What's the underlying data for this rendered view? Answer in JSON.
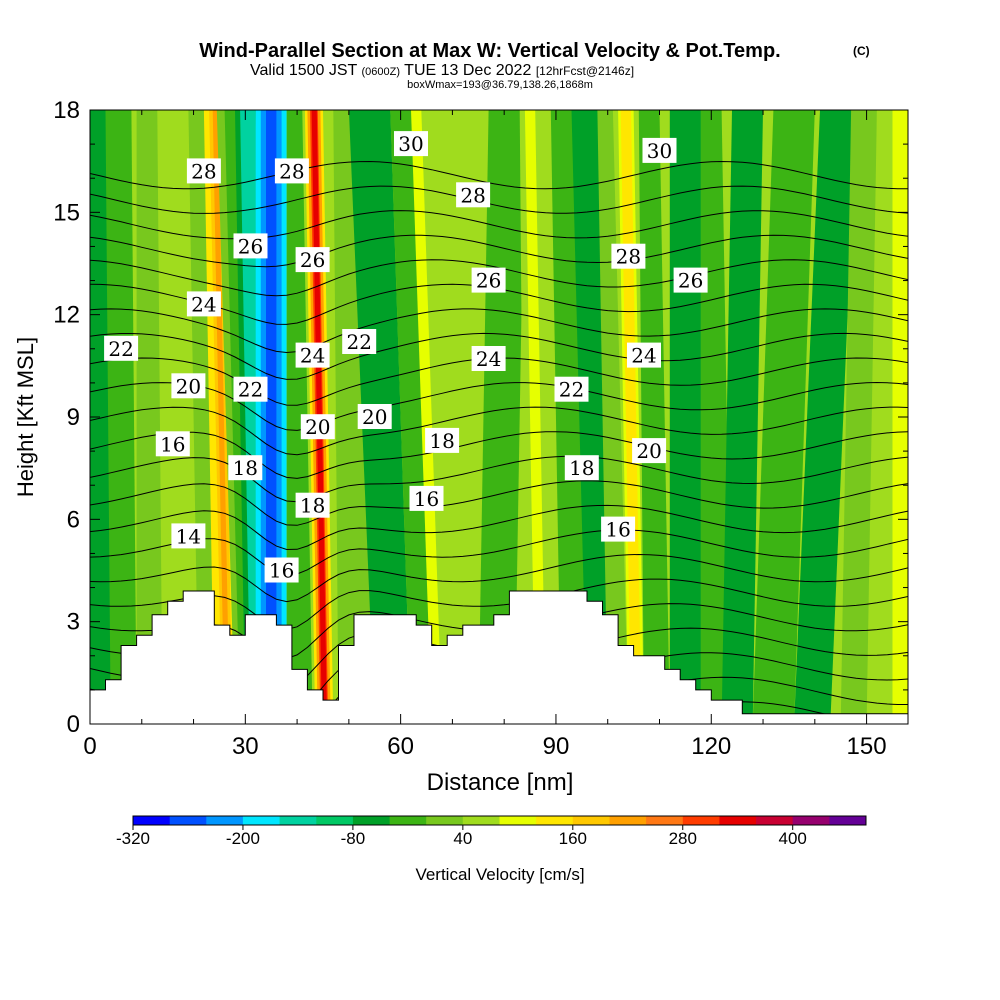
{
  "header": {
    "title": "Wind-Parallel Section at Max W: Vertical Velocity & Pot.Temp.",
    "copyright_mark": "(C)",
    "valid_prefix": "Valid 1500 JST",
    "valid_utc": "(0600Z)",
    "valid_date": "TUE 13 Dec 2022",
    "forecast_tag": "[12hrFcst@2146z]",
    "box_info": "boxWmax=193@36.79,138.26,1868m"
  },
  "chart_data": {
    "type": "heatmap",
    "xlabel": "Distance [nm]",
    "ylabel": "Height [Kft MSL]",
    "xlim": [
      0,
      158
    ],
    "ylim": [
      0,
      18
    ],
    "xticks": [
      0,
      30,
      60,
      90,
      120,
      150
    ],
    "yticks": [
      0,
      3,
      6,
      9,
      12,
      15,
      18
    ],
    "fill_variable": "Vertical Velocity [cm/s]",
    "contour_variable": "Potential Temperature",
    "colorbar": {
      "label": "Vertical Velocity [cm/s]",
      "levels": [
        -320,
        -280,
        -240,
        -200,
        -160,
        -120,
        -80,
        -40,
        0,
        40,
        80,
        120,
        160,
        200,
        240,
        280,
        320,
        360,
        400,
        440
      ],
      "tick_labels": [
        "-320",
        "-200",
        "-80",
        "40",
        "160",
        "280",
        "400"
      ],
      "colors": [
        "#0000ff",
        "#0050ff",
        "#0096ff",
        "#00e6ff",
        "#00d2a0",
        "#00c864",
        "#00a028",
        "#3cb414",
        "#78c81e",
        "#a0dc1e",
        "#e6ff00",
        "#ffe600",
        "#ffc800",
        "#ffa000",
        "#ff7814",
        "#ff3c00",
        "#e60000",
        "#c80032",
        "#96006e",
        "#640096"
      ]
    },
    "contour_levels": [
      14,
      16,
      18,
      20,
      22,
      24,
      26,
      28,
      30
    ],
    "contour_labels": [
      {
        "text": "28",
        "x": 22,
        "y": 16.2
      },
      {
        "text": "28",
        "x": 39,
        "y": 16.2
      },
      {
        "text": "30",
        "x": 62,
        "y": 17.0
      },
      {
        "text": "28",
        "x": 74,
        "y": 15.5
      },
      {
        "text": "30",
        "x": 110,
        "y": 16.8
      },
      {
        "text": "26",
        "x": 31,
        "y": 14.0
      },
      {
        "text": "26",
        "x": 43,
        "y": 13.6
      },
      {
        "text": "26",
        "x": 77,
        "y": 13.0
      },
      {
        "text": "28",
        "x": 104,
        "y": 13.7
      },
      {
        "text": "26",
        "x": 116,
        "y": 13.0
      },
      {
        "text": "24",
        "x": 22,
        "y": 12.3
      },
      {
        "text": "22",
        "x": 6,
        "y": 11.0
      },
      {
        "text": "22",
        "x": 52,
        "y": 11.2
      },
      {
        "text": "24",
        "x": 43,
        "y": 10.8
      },
      {
        "text": "24",
        "x": 77,
        "y": 10.7
      },
      {
        "text": "24",
        "x": 107,
        "y": 10.8
      },
      {
        "text": "20",
        "x": 19,
        "y": 9.9
      },
      {
        "text": "22",
        "x": 31,
        "y": 9.8
      },
      {
        "text": "22",
        "x": 93,
        "y": 9.8
      },
      {
        "text": "20",
        "x": 55,
        "y": 9.0
      },
      {
        "text": "20",
        "x": 44,
        "y": 8.7
      },
      {
        "text": "18",
        "x": 68,
        "y": 8.3
      },
      {
        "text": "16",
        "x": 16,
        "y": 8.2
      },
      {
        "text": "20",
        "x": 108,
        "y": 8.0
      },
      {
        "text": "18",
        "x": 30,
        "y": 7.5
      },
      {
        "text": "18",
        "x": 95,
        "y": 7.5
      },
      {
        "text": "16",
        "x": 65,
        "y": 6.6
      },
      {
        "text": "18",
        "x": 43,
        "y": 6.4
      },
      {
        "text": "14",
        "x": 19,
        "y": 5.5
      },
      {
        "text": "16",
        "x": 102,
        "y": 5.7
      },
      {
        "text": "16",
        "x": 37,
        "y": 4.5
      }
    ],
    "terrain": [
      [
        0,
        1.0
      ],
      [
        3,
        1.0
      ],
      [
        3,
        1.3
      ],
      [
        6,
        1.3
      ],
      [
        6,
        2.3
      ],
      [
        9,
        2.3
      ],
      [
        9,
        2.6
      ],
      [
        12,
        2.6
      ],
      [
        12,
        3.2
      ],
      [
        15,
        3.2
      ],
      [
        15,
        3.6
      ],
      [
        18,
        3.6
      ],
      [
        18,
        3.9
      ],
      [
        24,
        3.9
      ],
      [
        24,
        2.9
      ],
      [
        27,
        2.9
      ],
      [
        27,
        2.6
      ],
      [
        30,
        2.6
      ],
      [
        30,
        3.2
      ],
      [
        36,
        3.2
      ],
      [
        36,
        2.9
      ],
      [
        39,
        2.9
      ],
      [
        39,
        1.6
      ],
      [
        42,
        1.6
      ],
      [
        42,
        1.0
      ],
      [
        45,
        1.0
      ],
      [
        45,
        0.7
      ],
      [
        48,
        0.7
      ],
      [
        48,
        2.3
      ],
      [
        51,
        2.3
      ],
      [
        51,
        3.2
      ],
      [
        63,
        3.2
      ],
      [
        63,
        2.9
      ],
      [
        66,
        2.9
      ],
      [
        66,
        2.3
      ],
      [
        69,
        2.3
      ],
      [
        69,
        2.6
      ],
      [
        72,
        2.6
      ],
      [
        72,
        2.9
      ],
      [
        78,
        2.9
      ],
      [
        78,
        3.2
      ],
      [
        81,
        3.2
      ],
      [
        81,
        3.9
      ],
      [
        96,
        3.9
      ],
      [
        96,
        3.6
      ],
      [
        99,
        3.6
      ],
      [
        99,
        3.2
      ],
      [
        102,
        3.2
      ],
      [
        102,
        2.3
      ],
      [
        105,
        2.3
      ],
      [
        105,
        2.0
      ],
      [
        111,
        2.0
      ],
      [
        111,
        1.6
      ],
      [
        114,
        1.6
      ],
      [
        114,
        1.3
      ],
      [
        117,
        1.3
      ],
      [
        117,
        1.0
      ],
      [
        120,
        1.0
      ],
      [
        120,
        0.7
      ],
      [
        126,
        0.7
      ],
      [
        126,
        0.3
      ],
      [
        158,
        0.3
      ]
    ]
  }
}
